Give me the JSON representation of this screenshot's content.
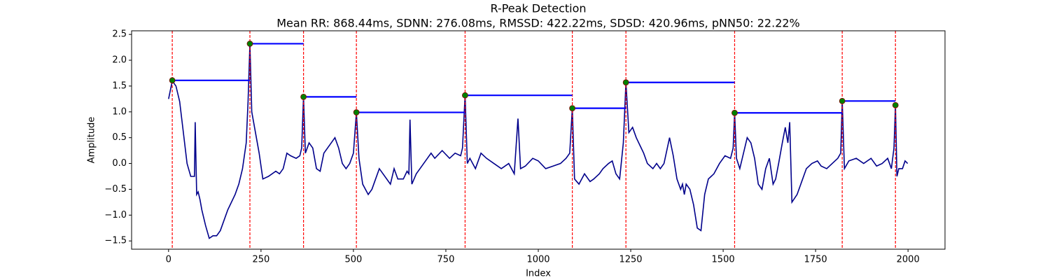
{
  "chart_data": {
    "type": "line",
    "title": "R-Peak Detection",
    "subtitle": "Mean RR: 868.44ms, SDNN: 276.08ms, RMSSD: 422.22ms, SDSD: 420.96ms, pNN50: 22.22%",
    "x_label": "Index",
    "y_label": "Amplitude",
    "xlim": [
      -100,
      2100
    ],
    "ylim": [
      -1.66,
      2.57
    ],
    "xticks": [
      0,
      250,
      500,
      750,
      1000,
      1250,
      1500,
      1750,
      2000
    ],
    "yticks": [
      {
        "value": -1.5,
        "label": "−1.5"
      },
      {
        "value": -1,
        "label": "−1.0"
      },
      {
        "value": -0.5,
        "label": "−0.5"
      },
      {
        "value": 0,
        "label": "0.0"
      },
      0.5,
      {
        "value": 1,
        "label": "1.0"
      },
      1.5,
      {
        "value": 2,
        "label": "2.0"
      },
      2.5
    ],
    "color": "#00008b",
    "rr_color": "#0000ff",
    "peak_line_color": "#ff0000",
    "peak_color": "#008000",
    "x": [
      0,
      10,
      20,
      30,
      40,
      50,
      60,
      70,
      72,
      76,
      80,
      85,
      90,
      100,
      110,
      120,
      130,
      140,
      150,
      160,
      170,
      180,
      190,
      200,
      210,
      215,
      220,
      225,
      235,
      245,
      255,
      270,
      290,
      300,
      310,
      320,
      330,
      345,
      355,
      360,
      365,
      370,
      380,
      390,
      400,
      410,
      420,
      430,
      440,
      450,
      460,
      470,
      480,
      490,
      500,
      508,
      515,
      525,
      540,
      550,
      560,
      570,
      580,
      600,
      610,
      620,
      635,
      645,
      650,
      653,
      658,
      670,
      680,
      690,
      700,
      710,
      720,
      740,
      760,
      775,
      790,
      795,
      802,
      808,
      815,
      830,
      845,
      860,
      880,
      900,
      920,
      935,
      945,
      952,
      965,
      985,
      1000,
      1020,
      1040,
      1060,
      1075,
      1085,
      1092,
      1098,
      1110,
      1125,
      1140,
      1150,
      1165,
      1175,
      1190,
      1200,
      1210,
      1220,
      1230,
      1237,
      1245,
      1255,
      1265,
      1275,
      1285,
      1295,
      1310,
      1320,
      1330,
      1340,
      1355,
      1365,
      1375,
      1385,
      1390,
      1395,
      1400,
      1410,
      1420,
      1430,
      1440,
      1450,
      1460,
      1475,
      1490,
      1505,
      1520,
      1527,
      1531,
      1536,
      1545,
      1555,
      1565,
      1575,
      1585,
      1595,
      1605,
      1615,
      1625,
      1635,
      1642,
      1650,
      1660,
      1668,
      1675,
      1680,
      1686,
      1700,
      1715,
      1725,
      1740,
      1755,
      1765,
      1780,
      1795,
      1810,
      1818,
      1822,
      1828,
      1840,
      1860,
      1880,
      1900,
      1915,
      1930,
      1945,
      1955,
      1962,
      1966,
      1970,
      1975,
      1985,
      1992,
      1999
    ],
    "values": [
      1.25,
      1.6,
      1.5,
      1.2,
      0.6,
      0.0,
      -0.25,
      -0.25,
      0.8,
      -0.6,
      -0.55,
      -0.7,
      -0.9,
      -1.2,
      -1.45,
      -1.4,
      -1.4,
      -1.3,
      -1.1,
      -0.9,
      -0.75,
      -0.6,
      -0.4,
      -0.1,
      0.4,
      1.2,
      2.32,
      1.0,
      0.6,
      0.2,
      -0.3,
      -0.25,
      -0.15,
      -0.2,
      -0.1,
      0.2,
      0.15,
      0.1,
      0.15,
      0.3,
      1.29,
      0.2,
      0.4,
      0.3,
      -0.1,
      -0.15,
      0.2,
      0.3,
      0.4,
      0.5,
      0.3,
      0.0,
      -0.1,
      0.0,
      0.2,
      0.99,
      0.1,
      -0.4,
      -0.6,
      -0.5,
      -0.3,
      -0.1,
      -0.2,
      -0.4,
      -0.1,
      -0.3,
      -0.3,
      -0.15,
      -0.2,
      0.85,
      -0.4,
      -0.2,
      -0.1,
      0.0,
      0.1,
      0.2,
      0.1,
      0.25,
      0.1,
      0.2,
      0.15,
      0.3,
      1.32,
      0.0,
      0.1,
      -0.1,
      0.2,
      0.1,
      0.0,
      -0.1,
      0.0,
      -0.2,
      0.87,
      -0.1,
      -0.05,
      0.1,
      0.05,
      -0.1,
      -0.05,
      0.0,
      0.1,
      0.2,
      1.07,
      -0.3,
      -0.4,
      -0.2,
      -0.35,
      -0.3,
      -0.2,
      -0.1,
      0.0,
      0.05,
      -0.2,
      -0.3,
      0.4,
      1.57,
      0.6,
      0.7,
      0.5,
      0.35,
      0.2,
      0.0,
      -0.1,
      0.0,
      -0.1,
      0.0,
      0.5,
      0.15,
      -0.3,
      -0.5,
      -0.4,
      -0.6,
      -0.4,
      -0.5,
      -0.8,
      -1.25,
      -1.3,
      -0.6,
      -0.3,
      -0.2,
      0.0,
      0.15,
      0.1,
      0.3,
      0.98,
      0.1,
      -0.1,
      0.2,
      0.5,
      0.4,
      0.1,
      -0.4,
      -0.5,
      -0.1,
      0.1,
      -0.4,
      -0.3,
      0.0,
      0.4,
      0.7,
      0.4,
      0.8,
      -0.75,
      -0.6,
      -0.3,
      -0.1,
      0.0,
      0.05,
      -0.05,
      -0.1,
      0.0,
      0.1,
      0.2,
      1.21,
      -0.1,
      0.05,
      0.1,
      0.0,
      0.1,
      -0.05,
      0.0,
      0.1,
      -0.1,
      0.3,
      1.13,
      -0.25,
      -0.1,
      -0.1,
      0.05,
      0.0
    ],
    "peaks": {
      "x": [
        10,
        220,
        365,
        508,
        802,
        1092,
        1237,
        1531,
        1822,
        1966
      ],
      "values": [
        1.61,
        2.32,
        1.29,
        0.99,
        1.32,
        1.07,
        1.57,
        0.98,
        1.21,
        1.13
      ]
    }
  }
}
